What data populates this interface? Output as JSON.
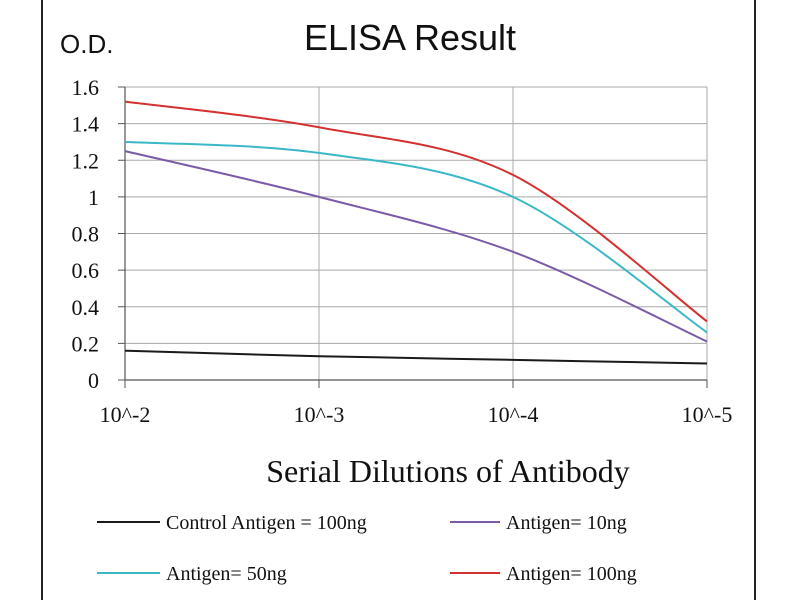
{
  "chart_data": {
    "type": "line",
    "title": "ELISA Result",
    "ylabel": "O.D.",
    "xlabel": "Serial Dilutions  of Antibody",
    "x_ticks": [
      "10^-2",
      "10^-3",
      "10^-4",
      "10^-5"
    ],
    "y_ticks": [
      "0",
      "0.2",
      "0.4",
      "0.6",
      "0.8",
      "1",
      "1.2",
      "1.4",
      "1.6"
    ],
    "ylim": [
      0,
      1.6
    ],
    "grid": true,
    "legend_position": "bottom",
    "series": [
      {
        "name": "Control Antigen = 100ng",
        "color": "#1a1a1a",
        "x": [
          "10^-2",
          "10^-3",
          "10^-4",
          "10^-5"
        ],
        "values": [
          0.16,
          0.13,
          0.11,
          0.09
        ]
      },
      {
        "name": "Antigen= 10ng",
        "color": "#7b5ba8",
        "x": [
          "10^-2",
          "10^-3",
          "10^-4",
          "10^-5"
        ],
        "values": [
          1.25,
          1.0,
          0.7,
          0.21
        ]
      },
      {
        "name": "Antigen= 50ng",
        "color": "#3ab8c8",
        "x": [
          "10^-2",
          "10^-3",
          "10^-4",
          "10^-5"
        ],
        "values": [
          1.3,
          1.24,
          1.0,
          0.26
        ]
      },
      {
        "name": "Antigen= 100ng",
        "color": "#d43030",
        "x": [
          "10^-2",
          "10^-3",
          "10^-4",
          "10^-5"
        ],
        "values": [
          1.52,
          1.38,
          1.12,
          0.32
        ]
      }
    ]
  }
}
